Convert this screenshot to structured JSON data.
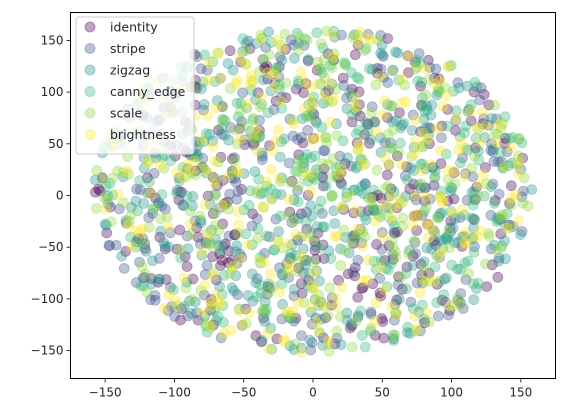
{
  "chart_data": {
    "type": "scatter",
    "title": "",
    "xlabel": "",
    "ylabel": "",
    "xlim": [
      -175,
      175
    ],
    "ylim": [
      -177,
      177
    ],
    "xticks": [
      -150,
      -100,
      -50,
      0,
      50,
      100,
      150
    ],
    "yticks": [
      -150,
      -100,
      -50,
      0,
      50,
      100,
      150
    ],
    "grid": false,
    "legend_position": "top-left",
    "point_alpha": 0.35,
    "series": [
      {
        "name": "identity",
        "color": "#440154"
      },
      {
        "name": "stripe",
        "color": "#3b528b"
      },
      {
        "name": "zigzag",
        "color": "#21918c"
      },
      {
        "name": "canny_edge",
        "color": "#35b779"
      },
      {
        "name": "scale",
        "color": "#90d743"
      },
      {
        "name": "brightness",
        "color": "#fde725"
      }
    ],
    "points_per_series": 260,
    "cloud_shape": "roughly circular cloud of points with x spanning about -160 to 160 and y spanning about -155 to 165"
  }
}
